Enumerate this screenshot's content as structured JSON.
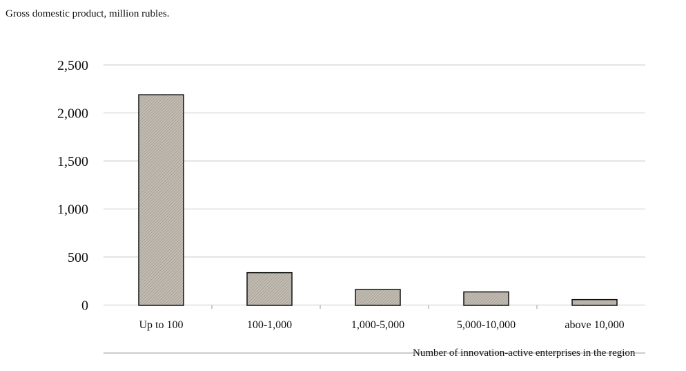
{
  "chart_data": {
    "type": "bar",
    "ylabel": "Gross domestic product, million rubles.",
    "xlabel": "Number of innovation-active enterprises in the region",
    "categories": [
      "Up to 100",
      "100-1,000",
      "1,000-5,000",
      "5,000-10,000",
      "above 10,000"
    ],
    "values": [
      2190,
      340,
      165,
      140,
      60
    ],
    "ytick_labels": [
      "2,500",
      "2,000",
      "1,500",
      "1,000",
      "500",
      "0"
    ],
    "ylim": [
      0,
      2500
    ],
    "grid": "horizontal",
    "legend": "none",
    "colors": {
      "bar_fill": "#bdb7ad",
      "bar_stroke": "#111111",
      "grid": "#c8c8c8",
      "axis": "#9a9a9a"
    }
  }
}
